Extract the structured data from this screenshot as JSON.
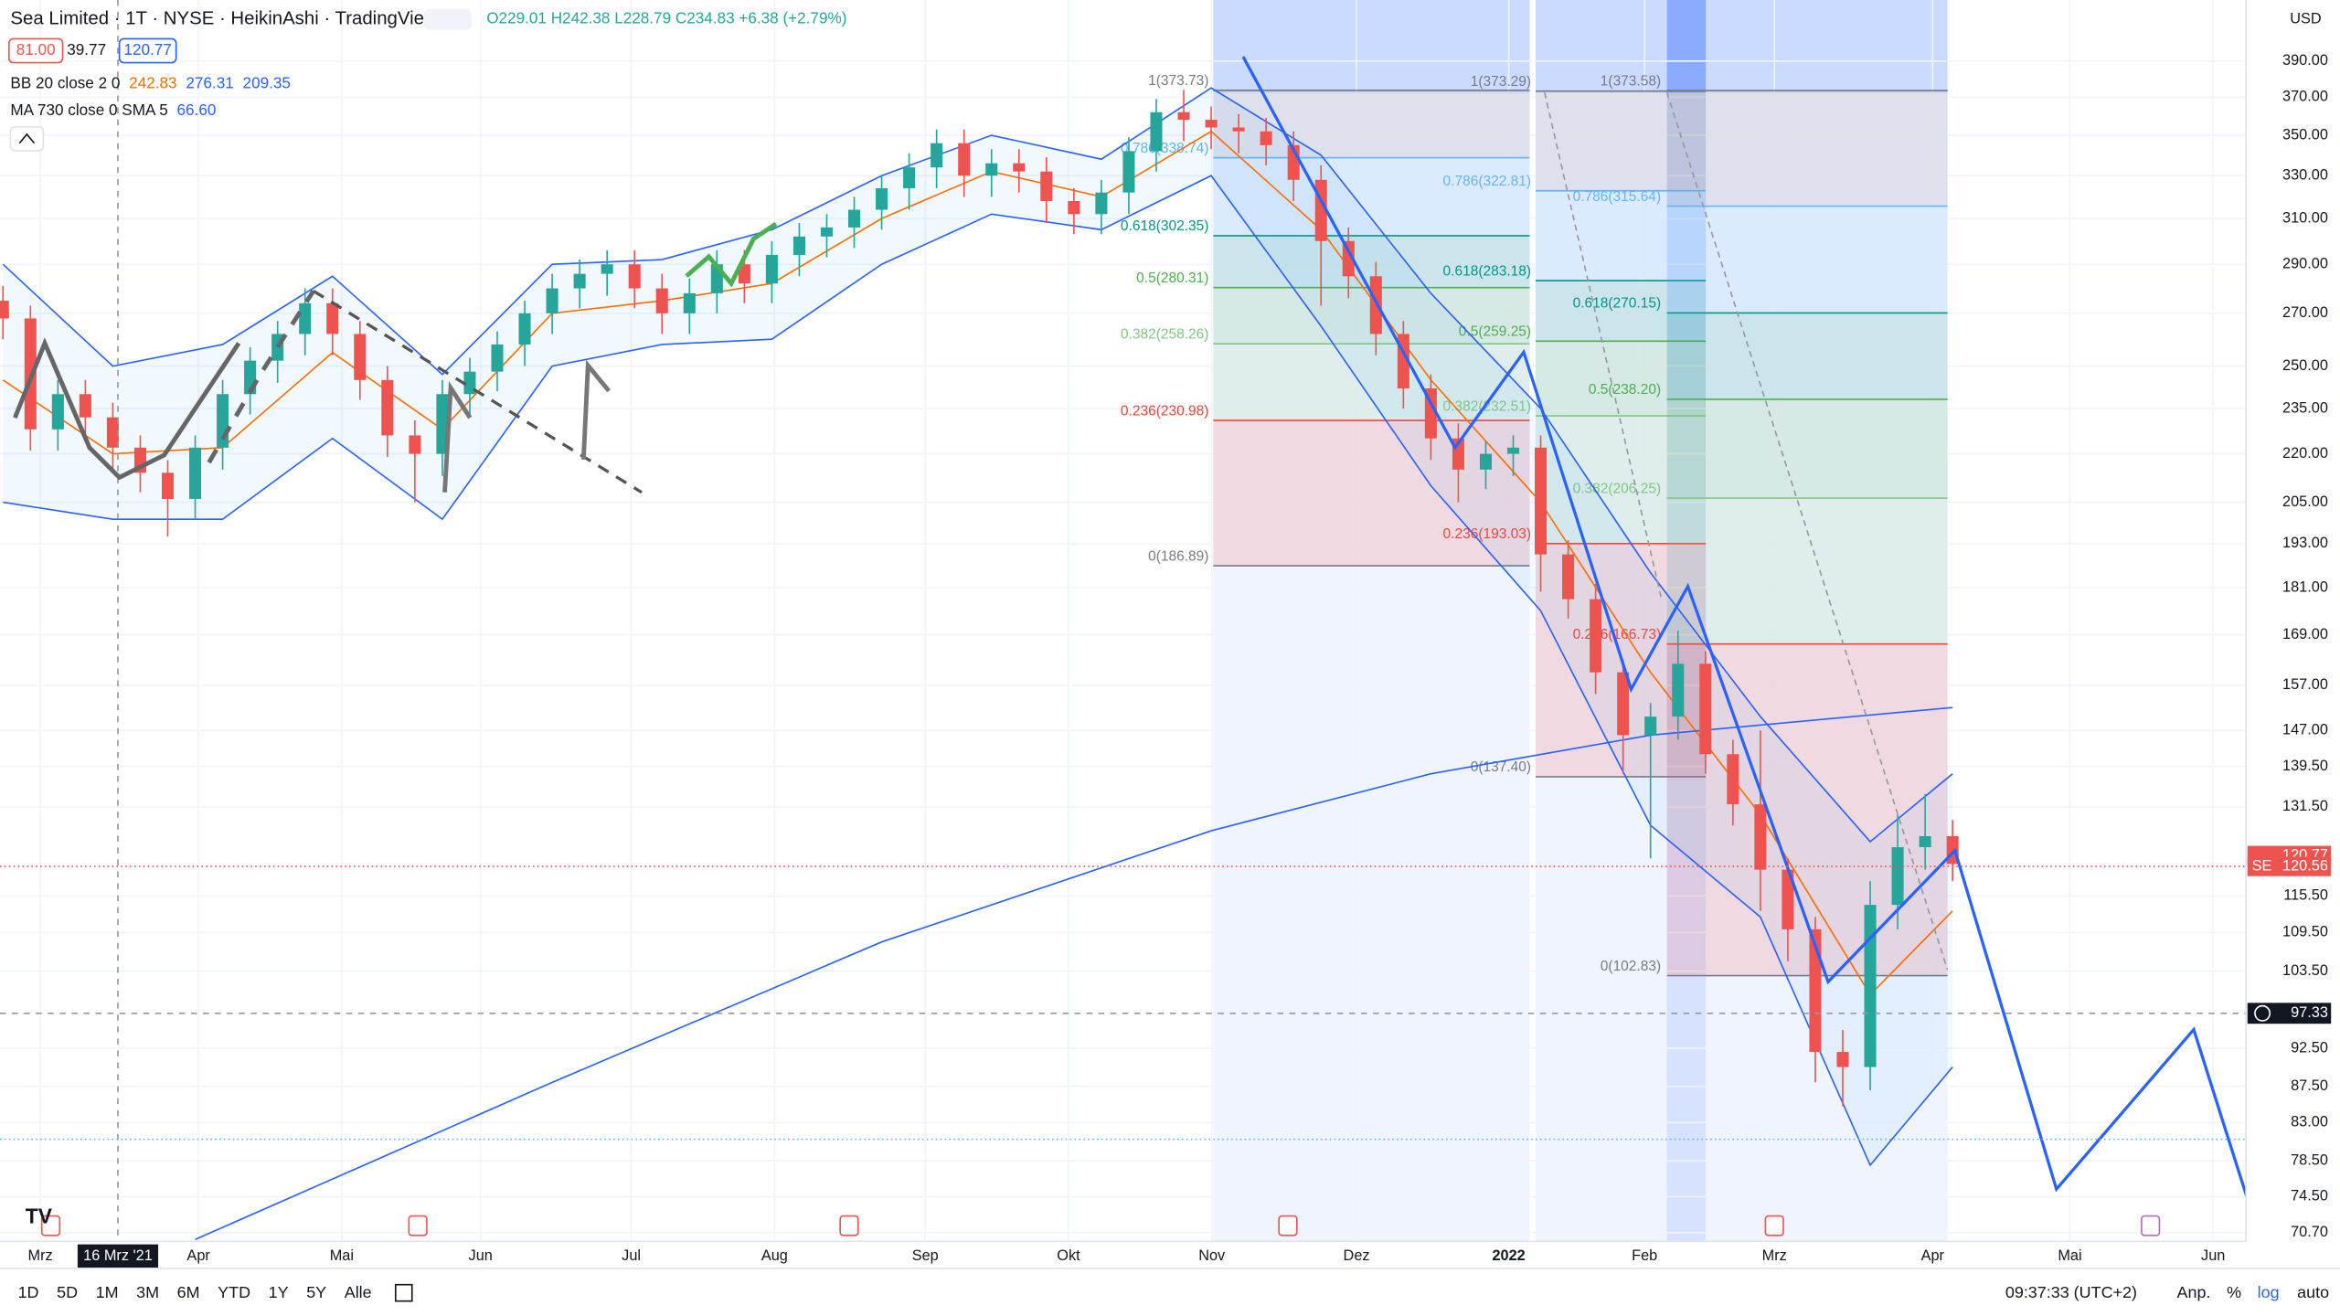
{
  "header": {
    "title": "Sea Limited · 1T · NYSE · HeikinAshi · TradingView",
    "ohlc": "O229.01 H242.38 L228.79 C234.83 +6.38 (+2.79%)",
    "sell": "81.00",
    "spread": "39.77",
    "buy": "120.77"
  },
  "legend": {
    "bb_name": "BB 20 close 2 0",
    "bb_values": [
      "242.83",
      "276.31",
      "209.35"
    ],
    "ma_name": "MA 730 close 0 SMA 5",
    "ma_value": "66.60"
  },
  "toolbar": {
    "ranges": [
      "1D",
      "5D",
      "1M",
      "3M",
      "6M",
      "YTD",
      "1Y",
      "5Y",
      "Alle"
    ],
    "clock": "09:37:33 (UTC+2)",
    "options": [
      "Anp.",
      "%",
      "log",
      "auto"
    ]
  },
  "chart_data": {
    "type": "candlestick",
    "log_scale": true,
    "currency": "USD",
    "ylim": [
      69.8,
      426.3
    ],
    "yticks": [
      {
        "value": 390,
        "label": "390.00"
      },
      {
        "value": 370,
        "label": "370.00"
      },
      {
        "value": 350,
        "label": "350.00"
      },
      {
        "value": 330,
        "label": "330.00"
      },
      {
        "value": 310,
        "label": "310.00"
      },
      {
        "value": 290,
        "label": "290.00"
      },
      {
        "value": 270,
        "label": "270.00"
      },
      {
        "value": 250,
        "label": "250.00"
      },
      {
        "value": 235,
        "label": "235.00"
      },
      {
        "value": 220,
        "label": "220.00"
      },
      {
        "value": 205,
        "label": "205.00"
      },
      {
        "value": 193,
        "label": "193.00"
      },
      {
        "value": 181,
        "label": "181.00"
      },
      {
        "value": 169,
        "label": "169.00"
      },
      {
        "value": 157,
        "label": "157.00"
      },
      {
        "value": 147,
        "label": "147.00"
      },
      {
        "value": 139.5,
        "label": "139.50"
      },
      {
        "value": 131.5,
        "label": "131.50"
      },
      {
        "value": 115.5,
        "label": "115.50"
      },
      {
        "value": 109.5,
        "label": "109.50"
      },
      {
        "value": 103.5,
        "label": "103.50"
      },
      {
        "value": 92.5,
        "label": "92.50"
      },
      {
        "value": 87.5,
        "label": "87.50"
      },
      {
        "value": 83,
        "label": "83.00"
      },
      {
        "value": 78.5,
        "label": "78.50"
      },
      {
        "value": 74.5,
        "label": "74.50"
      },
      {
        "value": 70.7,
        "label": "70.70"
      }
    ],
    "x_labels": [
      "Mrz",
      "Apr",
      "Mai",
      "Jun",
      "Jul",
      "Aug",
      "Sep",
      "Okt",
      "Nov",
      "Dez",
      "2022",
      "Feb",
      "Mrz",
      "Apr",
      "Mai",
      "Jun"
    ],
    "crosshair_date": "16 Mrz '21",
    "up_color": "#26a69a",
    "down_color": "#ef5350",
    "ohlc": [
      [
        275,
        281,
        260,
        268
      ],
      [
        268,
        273,
        221,
        228
      ],
      [
        228,
        245,
        221,
        240
      ],
      [
        240,
        245,
        225,
        232
      ],
      [
        232,
        237,
        215,
        222
      ],
      [
        222,
        226,
        208,
        214
      ],
      [
        214,
        218,
        195,
        206
      ],
      [
        206,
        226,
        200,
        222
      ],
      [
        222,
        245,
        215,
        240
      ],
      [
        240,
        257,
        233,
        252
      ],
      [
        252,
        267,
        244,
        262
      ],
      [
        262,
        280,
        254,
        274
      ],
      [
        274,
        280,
        254,
        262
      ],
      [
        262,
        267,
        238,
        245
      ],
      [
        245,
        250,
        219,
        226
      ],
      [
        226,
        231,
        205,
        220
      ],
      [
        220,
        245,
        213,
        240
      ],
      [
        240,
        253,
        233,
        248
      ],
      [
        248,
        263,
        241,
        258
      ],
      [
        258,
        275,
        250,
        270
      ],
      [
        270,
        286,
        262,
        280
      ],
      [
        280,
        292,
        272,
        286
      ],
      [
        286,
        296,
        277,
        290
      ],
      [
        290,
        296,
        272,
        280
      ],
      [
        280,
        286,
        262,
        270
      ],
      [
        270,
        284,
        262,
        278
      ],
      [
        278,
        296,
        270,
        290
      ],
      [
        290,
        296,
        274,
        282
      ],
      [
        282,
        300,
        274,
        294
      ],
      [
        294,
        308,
        285,
        302
      ],
      [
        302,
        312,
        293,
        306
      ],
      [
        306,
        320,
        297,
        314
      ],
      [
        314,
        330,
        305,
        324
      ],
      [
        324,
        341,
        314,
        334
      ],
      [
        334,
        353,
        324,
        346
      ],
      [
        346,
        353,
        320,
        330
      ],
      [
        330,
        343,
        320,
        336
      ],
      [
        336,
        343,
        322,
        332
      ],
      [
        332,
        339,
        308,
        318
      ],
      [
        318,
        324,
        303,
        312
      ],
      [
        312,
        328,
        303,
        322
      ],
      [
        322,
        349,
        312,
        342
      ],
      [
        342,
        369,
        332,
        362
      ],
      [
        362,
        374,
        347,
        358
      ],
      [
        358,
        365,
        343,
        354
      ],
      [
        354,
        361,
        341,
        352
      ],
      [
        352,
        359,
        335,
        345
      ],
      [
        345,
        352,
        318,
        328
      ],
      [
        328,
        335,
        273,
        300
      ],
      [
        300,
        306,
        276,
        285
      ],
      [
        285,
        291,
        254,
        262
      ],
      [
        262,
        267,
        235,
        242
      ],
      [
        242,
        247,
        218,
        225
      ],
      [
        225,
        230,
        205,
        215
      ],
      [
        215,
        224,
        209,
        220
      ],
      [
        220,
        226,
        213,
        222
      ],
      [
        222,
        226,
        180,
        190
      ],
      [
        190,
        194,
        173,
        178
      ],
      [
        178,
        182,
        155,
        160
      ],
      [
        160,
        163,
        138,
        146
      ],
      [
        146,
        153,
        122,
        150
      ],
      [
        150,
        170,
        145,
        162
      ],
      [
        162,
        165,
        138,
        142
      ],
      [
        142,
        145,
        128,
        132
      ],
      [
        132,
        147,
        113,
        120
      ],
      [
        120,
        122,
        105,
        110
      ],
      [
        110,
        112,
        88,
        92
      ],
      [
        92,
        95,
        85,
        90
      ],
      [
        90,
        118,
        87,
        114
      ],
      [
        114,
        130,
        110,
        124
      ],
      [
        124,
        134,
        120,
        126
      ],
      [
        126,
        129,
        118,
        121
      ]
    ],
    "bb": {
      "index": [
        0,
        4,
        8,
        12,
        16,
        20,
        24,
        28,
        32,
        36,
        40,
        44,
        48,
        52,
        56,
        60,
        64,
        68,
        71
      ],
      "upper": [
        290,
        250,
        258,
        285,
        247,
        290,
        292,
        305,
        330,
        350,
        338,
        375,
        340,
        278,
        235,
        185,
        150,
        125,
        138
      ],
      "basis": [
        245,
        220,
        222,
        255,
        228,
        270,
        275,
        282,
        310,
        332,
        320,
        352,
        305,
        245,
        205,
        160,
        130,
        100,
        113
      ],
      "lower": [
        205,
        200,
        200,
        225,
        200,
        250,
        258,
        260,
        290,
        312,
        305,
        330,
        265,
        210,
        175,
        128,
        112,
        78,
        90
      ],
      "upper_color": "#2962ff",
      "basis_color": "#ff6d00",
      "lower_color": "#2962ff"
    },
    "ma": {
      "index": [
        7,
        20,
        32,
        44,
        52,
        60,
        71
      ],
      "values": [
        70,
        88,
        108,
        127,
        138,
        146,
        152
      ],
      "color": "#2962ff"
    },
    "fib_colors": [
      "#787b86",
      "#64b5f6",
      "#009688",
      "#4caf50",
      "#81c784",
      "#f44336",
      "#787b86"
    ],
    "fibs": [
      {
        "levels": [
          {
            "value": 373.73,
            "label": "1(373.73)"
          },
          {
            "value": 338.74,
            "label": "0.786(338.74)"
          },
          {
            "value": 302.35,
            "label": "0.618(302.35)"
          },
          {
            "value": 280.31,
            "label": "0.5(280.31)"
          },
          {
            "value": 258.26,
            "label": "0.382(258.26)"
          },
          {
            "value": 230.98,
            "label": "0.236(230.98)"
          },
          {
            "value": 186.89,
            "label": "0(186.89)"
          }
        ]
      },
      {
        "levels": [
          {
            "value": 373.29,
            "label": "1(373.29)"
          },
          {
            "value": 322.81,
            "label": "0.786(322.81)"
          },
          {
            "value": 283.18,
            "label": "0.618(283.18)"
          },
          {
            "value": 259.25,
            "label": "0.5(259.25)"
          },
          {
            "value": 232.51,
            "label": "0.382(232.51)"
          },
          {
            "value": 193.03,
            "label": "0.236(193.03)"
          },
          {
            "value": 137.4,
            "label": "0(137.40)"
          }
        ]
      },
      {
        "levels": [
          {
            "value": 373.58,
            "label": "1(373.58)"
          },
          {
            "value": 315.64,
            "label": "0.786(315.64)"
          },
          {
            "value": 270.15,
            "label": "0.618(270.15)"
          },
          {
            "value": 238.2,
            "label": "0.5(238.20)"
          },
          {
            "value": 206.25,
            "label": "0.382(206.25)"
          },
          {
            "value": 166.73,
            "label": "0.236(166.73)"
          },
          {
            "value": 102.83,
            "label": "0(102.83)"
          }
        ]
      }
    ],
    "last_price": 120.77,
    "line_price": 120.56,
    "symbol_tag": "SE",
    "crosshair_price": 97.33,
    "alert_price": {
      "value": 81,
      "label": "81.00"
    }
  }
}
